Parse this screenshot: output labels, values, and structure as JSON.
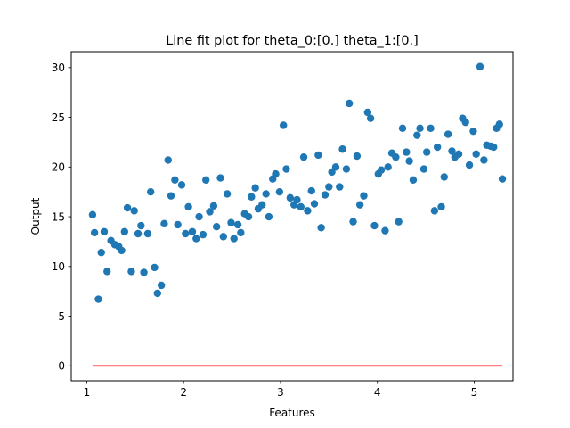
{
  "chart_data": {
    "type": "scatter",
    "title": "Line fit plot for theta_0:[0.] theta_1:[0.]",
    "xlabel": "Features",
    "ylabel": "Output",
    "xlim": [
      0.84,
      5.4
    ],
    "ylim": [
      -1.5,
      31.6
    ],
    "xticks": [
      1,
      2,
      3,
      4,
      5
    ],
    "yticks": [
      0,
      5,
      10,
      15,
      20,
      25,
      30
    ],
    "grid": false,
    "legend": "none",
    "colors": {
      "scatter": "#1f77b4",
      "line": "#ff0000"
    },
    "series": [
      {
        "type": "scatter",
        "points": [
          [
            1.06,
            15.2
          ],
          [
            1.08,
            13.4
          ],
          [
            1.12,
            6.7
          ],
          [
            1.15,
            11.4
          ],
          [
            1.18,
            13.5
          ],
          [
            1.21,
            9.5
          ],
          [
            1.25,
            12.6
          ],
          [
            1.29,
            12.2
          ],
          [
            1.33,
            12.0
          ],
          [
            1.36,
            11.6
          ],
          [
            1.39,
            13.5
          ],
          [
            1.42,
            15.9
          ],
          [
            1.46,
            9.5
          ],
          [
            1.49,
            15.6
          ],
          [
            1.53,
            13.3
          ],
          [
            1.56,
            14.1
          ],
          [
            1.59,
            9.4
          ],
          [
            1.63,
            13.3
          ],
          [
            1.66,
            17.5
          ],
          [
            1.7,
            9.9
          ],
          [
            1.73,
            7.3
          ],
          [
            1.77,
            8.1
          ],
          [
            1.8,
            14.3
          ],
          [
            1.84,
            20.7
          ],
          [
            1.87,
            17.1
          ],
          [
            1.91,
            18.7
          ],
          [
            1.94,
            14.2
          ],
          [
            1.98,
            18.2
          ],
          [
            2.02,
            13.3
          ],
          [
            2.05,
            16.0
          ],
          [
            2.09,
            13.5
          ],
          [
            2.13,
            12.8
          ],
          [
            2.16,
            15.0
          ],
          [
            2.2,
            13.2
          ],
          [
            2.23,
            18.7
          ],
          [
            2.27,
            15.5
          ],
          [
            2.31,
            16.1
          ],
          [
            2.34,
            14.0
          ],
          [
            2.38,
            18.9
          ],
          [
            2.41,
            13.0
          ],
          [
            2.45,
            17.3
          ],
          [
            2.49,
            14.4
          ],
          [
            2.52,
            12.8
          ],
          [
            2.56,
            14.2
          ],
          [
            2.59,
            13.4
          ],
          [
            2.63,
            15.3
          ],
          [
            2.67,
            15.0
          ],
          [
            2.7,
            17.0
          ],
          [
            2.74,
            17.9
          ],
          [
            2.77,
            15.8
          ],
          [
            2.81,
            16.2
          ],
          [
            2.85,
            17.3
          ],
          [
            2.88,
            15.0
          ],
          [
            2.92,
            18.8
          ],
          [
            2.95,
            19.3
          ],
          [
            2.99,
            17.5
          ],
          [
            3.03,
            24.2
          ],
          [
            3.06,
            19.8
          ],
          [
            3.1,
            16.9
          ],
          [
            3.14,
            16.2
          ],
          [
            3.17,
            16.7
          ],
          [
            3.21,
            16.0
          ],
          [
            3.24,
            21.0
          ],
          [
            3.28,
            15.6
          ],
          [
            3.32,
            17.6
          ],
          [
            3.35,
            16.3
          ],
          [
            3.39,
            21.2
          ],
          [
            3.42,
            13.9
          ],
          [
            3.46,
            17.2
          ],
          [
            3.5,
            18.0
          ],
          [
            3.53,
            19.5
          ],
          [
            3.57,
            20.0
          ],
          [
            3.61,
            18.0
          ],
          [
            3.64,
            21.8
          ],
          [
            3.68,
            19.8
          ],
          [
            3.71,
            26.4
          ],
          [
            3.75,
            14.5
          ],
          [
            3.79,
            21.1
          ],
          [
            3.82,
            16.2
          ],
          [
            3.86,
            17.1
          ],
          [
            3.9,
            25.5
          ],
          [
            3.93,
            24.9
          ],
          [
            3.97,
            14.1
          ],
          [
            4.01,
            19.3
          ],
          [
            4.04,
            19.7
          ],
          [
            4.08,
            13.6
          ],
          [
            4.11,
            20.0
          ],
          [
            4.15,
            21.4
          ],
          [
            4.19,
            21.0
          ],
          [
            4.22,
            14.5
          ],
          [
            4.26,
            23.9
          ],
          [
            4.3,
            21.5
          ],
          [
            4.33,
            20.6
          ],
          [
            4.37,
            18.7
          ],
          [
            4.41,
            23.2
          ],
          [
            4.44,
            23.9
          ],
          [
            4.48,
            19.8
          ],
          [
            4.51,
            21.5
          ],
          [
            4.55,
            23.9
          ],
          [
            4.59,
            15.6
          ],
          [
            4.62,
            22.0
          ],
          [
            4.66,
            16.0
          ],
          [
            4.69,
            19.0
          ],
          [
            4.73,
            23.3
          ],
          [
            4.77,
            21.6
          ],
          [
            4.8,
            21.0
          ],
          [
            4.84,
            21.3
          ],
          [
            4.88,
            24.9
          ],
          [
            4.91,
            24.5
          ],
          [
            4.95,
            20.2
          ],
          [
            4.99,
            23.6
          ],
          [
            5.02,
            21.3
          ],
          [
            5.06,
            30.1
          ],
          [
            5.1,
            20.7
          ],
          [
            5.13,
            22.2
          ],
          [
            5.17,
            22.1
          ],
          [
            5.2,
            22.0
          ],
          [
            5.23,
            23.9
          ],
          [
            5.26,
            24.3
          ],
          [
            5.29,
            18.8
          ]
        ]
      },
      {
        "type": "line",
        "x": [
          1.06,
          5.29
        ],
        "y": [
          0,
          0
        ]
      }
    ]
  }
}
